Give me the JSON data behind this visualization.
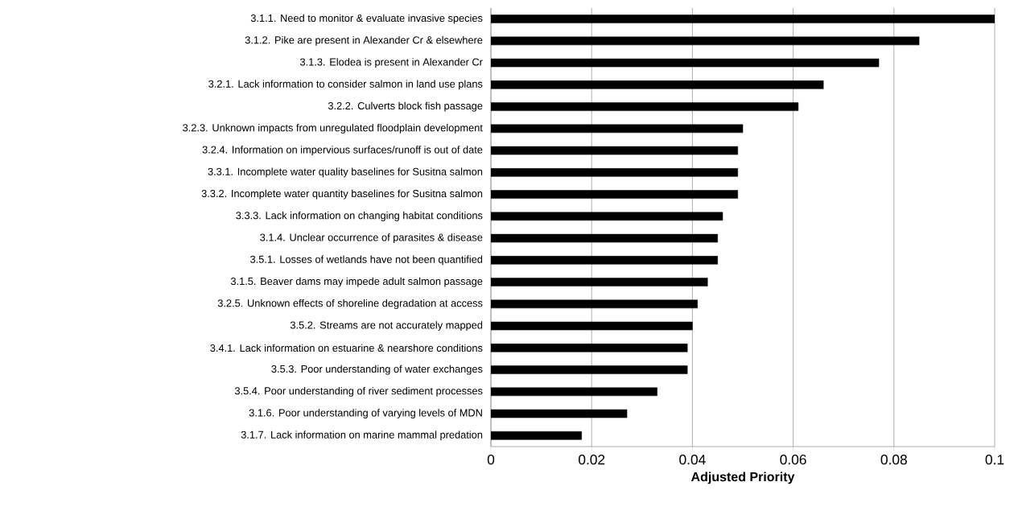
{
  "chart_data": {
    "type": "bar",
    "orientation": "horizontal",
    "xlabel": "Adjusted Priority",
    "color": "#000000",
    "grid": "x",
    "categories": [
      "3.1.1. Need to monitor & evaluate invasive species",
      "3.1.2. Pike are present in Alexander Cr & elsewhere",
      "3.1.3. Elodea is present in Alexander Cr",
      "3.2.1. Lack information to consider salmon in land use plans",
      "3.2.2. Culverts block fish passage",
      "3.2.3. Unknown impacts from unregulated floodplain development",
      "3.2.4. Information on impervious surfaces/runoff is out of date",
      "3.3.1. Incomplete water quality baselines for Susitna salmon",
      "3.3.2. Incomplete water quantity baselines for Susitna salmon",
      "3.3.3. Lack information on changing habitat conditions",
      "3.1.4. Unclear occurrence of parasites & disease",
      "3.5.1. Losses of wetlands have not been quantified",
      "3.1.5. Beaver dams may impede adult salmon passage",
      "3.2.5. Unknown effects of shoreline degradation at access",
      "3.5.2. Streams are not accurately mapped",
      "3.4.1. Lack information on estuarine & nearshore conditions",
      "3.5.3. Poor understanding of water exchanges",
      "3.5.4. Poor understanding of river sediment processes",
      "3.1.6. Poor understanding of varying levels of MDN",
      "3.1.7. Lack information on marine mammal predation"
    ],
    "values": [
      0.1,
      0.085,
      0.077,
      0.066,
      0.061,
      0.05,
      0.049,
      0.049,
      0.049,
      0.046,
      0.045,
      0.045,
      0.043,
      0.041,
      0.04,
      0.039,
      0.039,
      0.033,
      0.027,
      0.018
    ],
    "xlim": [
      0,
      0.1
    ],
    "xticks": [
      0,
      0.02,
      0.04,
      0.06,
      0.08,
      0.1
    ]
  }
}
